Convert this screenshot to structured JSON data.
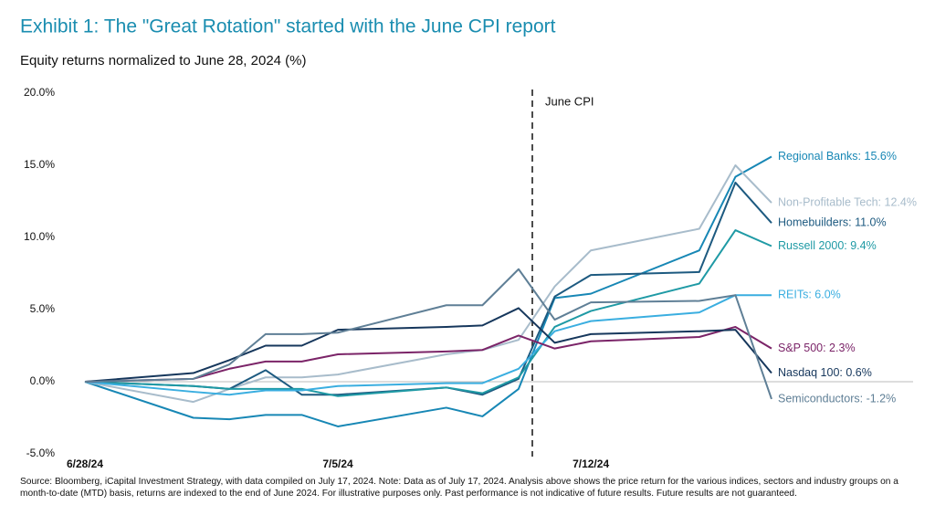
{
  "chart_data": {
    "type": "line",
    "title": "Exhibit 1: The \"Great Rotation\" started with the June CPI report",
    "subtitle": "Equity returns normalized to June 28, 2024 (%)",
    "annotations": [
      {
        "text": "June CPI"
      }
    ],
    "source": "Source: Bloomberg, iCapital Investment Strategy, with data compiled on July 17, 2024. Note: Data as of July 17, 2024. Analysis above shows the price return for the various indices, sectors and industry groups on a month-to-date (MTD) basis, returns are indexed to the end of June 2024. For illustrative purposes only. Past performance is not indicative of future results. Future results are not guaranteed.",
    "x": [
      "6/28/24",
      "7/1/24",
      "7/2/24",
      "7/3/24",
      "7/4/24",
      "7/5/24",
      "7/8/24",
      "7/9/24",
      "7/10/24",
      "7/11/24",
      "7/12/24",
      "7/15/24",
      "7/16/24",
      "7/17/24"
    ],
    "xticks": [
      "6/28/24",
      "7/5/24",
      "7/12/24"
    ],
    "ylim": [
      -5,
      20
    ],
    "yticks": [
      {
        "value": -5,
        "label": "-5.0%"
      },
      {
        "value": 0,
        "label": "0.0%"
      },
      {
        "value": 5,
        "label": "5.0%"
      },
      {
        "value": 10,
        "label": "10.0%"
      },
      {
        "value": 15,
        "label": "15.0%"
      },
      {
        "value": 20,
        "label": "20.0%"
      }
    ],
    "series": [
      {
        "name": "Regional Banks: 15.6%",
        "color": "#1787b5",
        "values": [
          0,
          -2.5,
          -2.6,
          -2.3,
          -2.3,
          -3.1,
          -1.8,
          -2.4,
          -0.5,
          5.8,
          6.1,
          9.1,
          14.2,
          15.6
        ]
      },
      {
        "name": "Non-Profitable Tech: 12.4%",
        "color": "#a8bccb",
        "values": [
          0,
          -1.4,
          -0.5,
          0.3,
          0.3,
          0.5,
          1.9,
          2.2,
          2.9,
          6.6,
          9.1,
          10.6,
          15.0,
          12.4
        ]
      },
      {
        "name": "Homebuilders: 11.0%",
        "color": "#1d5a80",
        "values": [
          0,
          -0.3,
          -0.5,
          0.8,
          -0.9,
          -0.9,
          -0.4,
          -0.9,
          0.2,
          5.9,
          7.4,
          7.6,
          13.8,
          11.0
        ]
      },
      {
        "name": "Russell 2000: 9.4%",
        "color": "#1f9aa5",
        "values": [
          0,
          -0.3,
          -0.5,
          -0.5,
          -0.5,
          -1.0,
          -0.4,
          -0.8,
          0.3,
          3.8,
          4.9,
          6.8,
          10.5,
          9.4
        ]
      },
      {
        "name": "REITs: 6.0%",
        "color": "#3aaee0",
        "values": [
          0,
          -0.7,
          -0.9,
          -0.6,
          -0.6,
          -0.3,
          -0.1,
          -0.1,
          0.9,
          3.5,
          4.2,
          4.8,
          6.0,
          6.0
        ]
      },
      {
        "name": "S&P 500: 2.3%",
        "color": "#7b2468",
        "values": [
          0,
          0.2,
          0.9,
          1.4,
          1.4,
          1.9,
          2.1,
          2.2,
          3.2,
          2.3,
          2.8,
          3.1,
          3.8,
          2.3
        ]
      },
      {
        "name": "Nasdaq 100: 0.6%",
        "color": "#16375c",
        "values": [
          0,
          0.6,
          1.5,
          2.5,
          2.5,
          3.6,
          3.8,
          3.9,
          5.1,
          2.7,
          3.3,
          3.5,
          3.6,
          0.6
        ]
      },
      {
        "name": "Semiconductors: -1.2%",
        "color": "#5f7f96",
        "values": [
          0,
          0.2,
          1.2,
          3.3,
          3.3,
          3.4,
          5.3,
          5.3,
          7.8,
          4.3,
          5.5,
          5.6,
          6.0,
          -1.2
        ]
      }
    ]
  }
}
